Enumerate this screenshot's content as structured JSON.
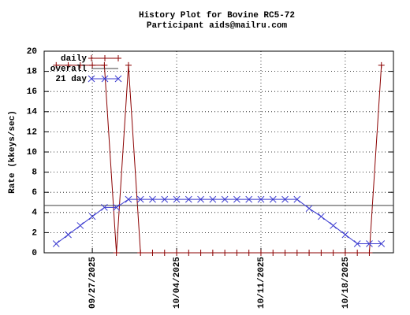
{
  "chart_data": {
    "type": "line",
    "title": "History Plot for Bovine RC5-72",
    "subtitle": "Participant aids@mailru.com",
    "y_label": "Rate (kkeys/sec)",
    "x": [
      "2025-09-24",
      "2025-09-25",
      "2025-09-26",
      "2025-09-27",
      "2025-09-28",
      "2025-09-29",
      "2025-09-30",
      "2025-10-01",
      "2025-10-02",
      "2025-10-03",
      "2025-10-04",
      "2025-10-05",
      "2025-10-06",
      "2025-10-07",
      "2025-10-08",
      "2025-10-09",
      "2025-10-10",
      "2025-10-11",
      "2025-10-12",
      "2025-10-13",
      "2025-10-14",
      "2025-10-15",
      "2025-10-16",
      "2025-10-17",
      "2025-10-18",
      "2025-10-19",
      "2025-10-20",
      "2025-10-21"
    ],
    "xlim": [
      "2025-09-23",
      "2025-10-22"
    ],
    "xticks": [
      {
        "value": "2025-09-27",
        "label": "09/27/2025"
      },
      {
        "value": "2025-10-04",
        "label": "10/04/2025"
      },
      {
        "value": "2025-10-11",
        "label": "10/11/2025"
      },
      {
        "value": "2025-10-18",
        "label": "10/18/2025"
      }
    ],
    "ylim": [
      0,
      20
    ],
    "yticks": [
      0,
      2,
      4,
      6,
      8,
      10,
      12,
      14,
      16,
      18,
      20
    ],
    "grid": true,
    "legend": "top-left",
    "series": [
      {
        "name": "daily",
        "color": "#8b0000",
        "marker": "plus",
        "values": [
          18.6,
          18.6,
          18.6,
          18.6,
          18.6,
          0,
          18.6,
          0,
          0,
          0,
          0,
          0,
          0,
          0,
          0,
          0,
          0,
          0,
          0,
          0,
          0,
          0,
          0,
          0,
          0,
          0,
          0,
          18.6
        ]
      },
      {
        "name": "overall",
        "color": "#404040",
        "value": 4.7
      },
      {
        "name": "21 day",
        "color": "#3c3cd0",
        "marker": "cross",
        "values": [
          0.9,
          1.8,
          2.7,
          3.6,
          4.5,
          4.5,
          5.3,
          5.3,
          5.3,
          5.3,
          5.3,
          5.3,
          5.3,
          5.3,
          5.3,
          5.3,
          5.3,
          5.3,
          5.3,
          5.3,
          5.3,
          4.4,
          3.6,
          2.7,
          1.8,
          0.9,
          0.9,
          0.9
        ]
      }
    ]
  }
}
